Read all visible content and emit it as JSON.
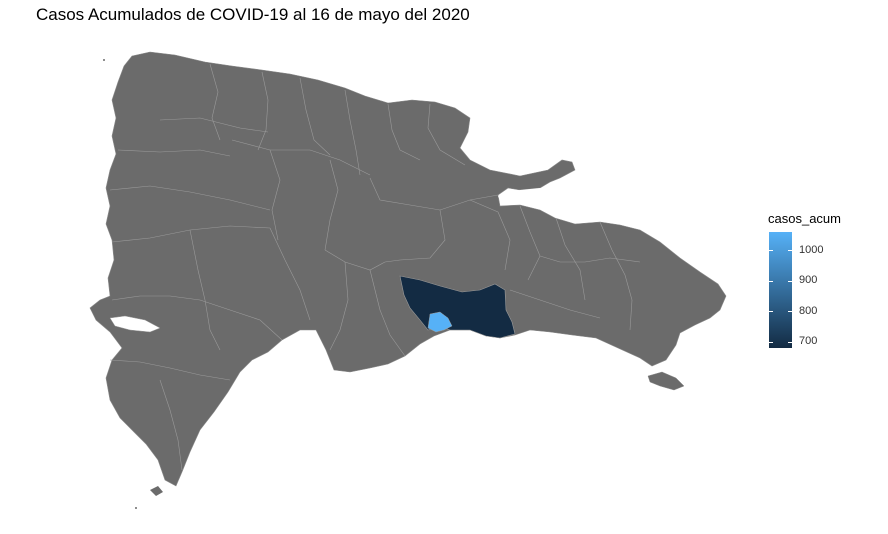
{
  "title": "Casos Acumulados de COVID-19 al 16 de mayo del 2020",
  "legend": {
    "title": "casos_acum",
    "ticks": [
      "1000",
      "900",
      "800",
      "700"
    ],
    "tick_values": [
      1000,
      900,
      800,
      700
    ],
    "range": [
      680,
      1060
    ],
    "color_low": "#132b43",
    "color_high": "#56b1f7"
  },
  "colors": {
    "land": "#6b6b6b",
    "border": "#9a9a9a",
    "no_data": "#6b6b6b"
  },
  "map_data": {
    "highlighted_regions": [
      {
        "name_semantic": "santo-domingo-province",
        "casos_acum": 690
      },
      {
        "name_semantic": "distrito-nacional",
        "casos_acum": 1060
      }
    ]
  }
}
